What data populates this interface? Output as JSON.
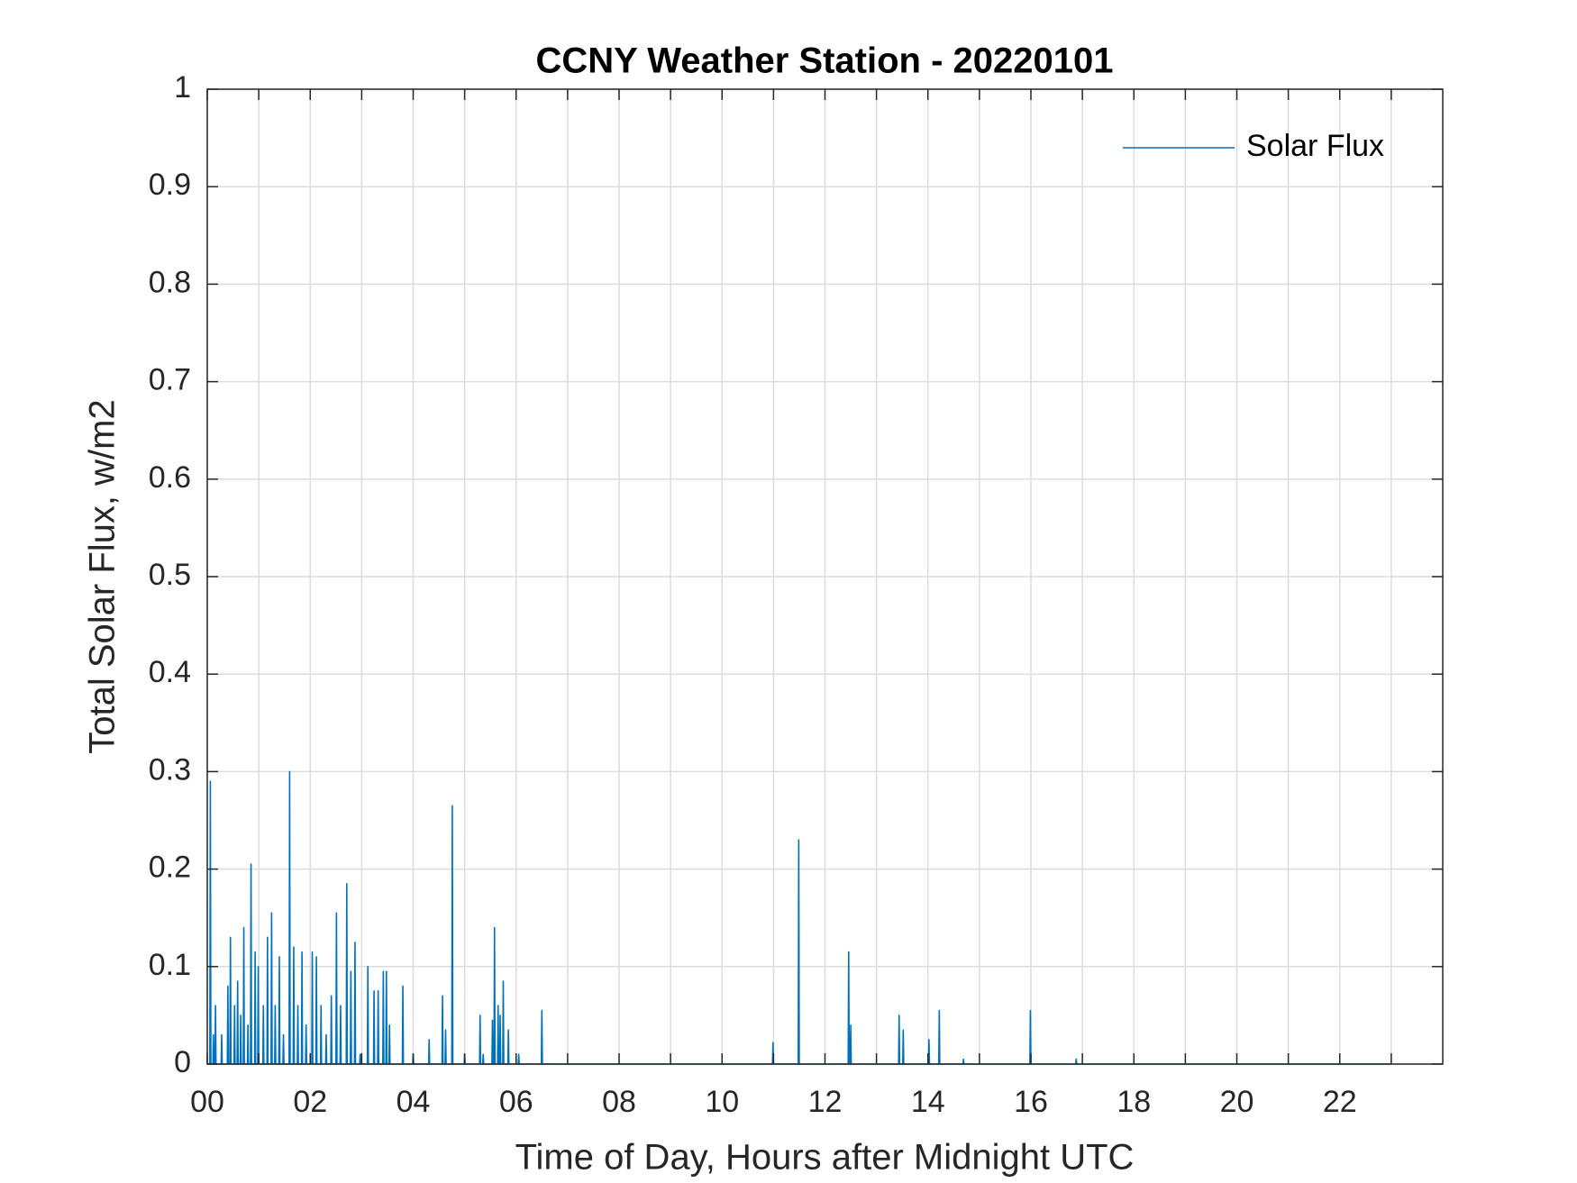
{
  "chart_data": {
    "type": "line",
    "title": "CCNY Weather Station - 20220101",
    "xlabel": "Time of Day, Hours after Midnight UTC",
    "ylabel": "Total Solar Flux, w/m2",
    "xlim": [
      0,
      24
    ],
    "ylim": [
      0,
      1
    ],
    "xticks": [
      {
        "value": 0,
        "label": "00"
      },
      {
        "value": 2,
        "label": "02"
      },
      {
        "value": 4,
        "label": "04"
      },
      {
        "value": 6,
        "label": "06"
      },
      {
        "value": 8,
        "label": "08"
      },
      {
        "value": 10,
        "label": "10"
      },
      {
        "value": 12,
        "label": "12"
      },
      {
        "value": 14,
        "label": "14"
      },
      {
        "value": 16,
        "label": "16"
      },
      {
        "value": 18,
        "label": "18"
      },
      {
        "value": 20,
        "label": "20"
      },
      {
        "value": 22,
        "label": "22"
      }
    ],
    "xminorticks": [
      1,
      3,
      5,
      7,
      9,
      11,
      13,
      15,
      17,
      19,
      21,
      23
    ],
    "yticks": [
      0,
      0.1,
      0.2,
      0.3,
      0.4,
      0.5,
      0.6,
      0.7,
      0.8,
      0.9,
      1
    ],
    "grid": true,
    "legend": "northeast",
    "x": [
      0,
      0.05,
      0.06,
      0.07,
      0.11,
      0.12,
      0.13,
      0.15,
      0.16,
      0.17,
      0.27,
      0.28,
      0.29,
      0.39,
      0.4,
      0.41,
      0.44,
      0.45,
      0.46,
      0.52,
      0.53,
      0.54,
      0.58,
      0.59,
      0.6,
      0.64,
      0.65,
      0.66,
      0.7,
      0.71,
      0.72,
      0.78,
      0.79,
      0.8,
      0.84,
      0.85,
      0.86,
      0.92,
      0.93,
      0.94,
      0.98,
      0.99,
      1.0,
      1.08,
      1.09,
      1.1,
      1.16,
      1.17,
      1.18,
      1.24,
      1.25,
      1.26,
      1.31,
      1.32,
      1.33,
      1.39,
      1.4,
      1.41,
      1.47,
      1.48,
      1.49,
      1.59,
      1.6,
      1.61,
      1.67,
      1.68,
      1.69,
      1.75,
      1.76,
      1.77,
      1.83,
      1.84,
      1.85,
      1.91,
      1.92,
      1.93,
      2.03,
      2.04,
      2.05,
      2.11,
      2.12,
      2.13,
      2.2,
      2.21,
      2.22,
      2.3,
      2.31,
      2.32,
      2.4,
      2.41,
      2.42,
      2.5,
      2.51,
      2.52,
      2.58,
      2.59,
      2.6,
      2.7,
      2.71,
      2.72,
      2.78,
      2.79,
      2.8,
      2.86,
      2.87,
      2.88,
      2.96,
      2.97,
      2.98,
      3.11,
      3.12,
      3.13,
      3.23,
      3.24,
      3.25,
      3.31,
      3.32,
      3.33,
      3.41,
      3.42,
      3.43,
      3.47,
      3.48,
      3.49,
      3.53,
      3.54,
      3.55,
      3.79,
      3.8,
      3.81,
      3.99,
      4.0,
      4.01,
      4.3,
      4.31,
      4.32,
      4.56,
      4.57,
      4.58,
      4.62,
      4.63,
      4.64,
      4.75,
      4.76,
      4.77,
      4.99,
      5.0,
      5.01,
      5.29,
      5.3,
      5.31,
      5.35,
      5.36,
      5.37,
      5.53,
      5.54,
      5.55,
      5.57,
      5.58,
      5.59,
      5.64,
      5.65,
      5.66,
      5.68,
      5.69,
      5.7,
      5.74,
      5.75,
      5.76,
      5.84,
      5.85,
      5.86,
      6.04,
      6.05,
      6.06,
      6.49,
      6.5,
      6.51,
      10.98,
      10.99,
      11.0,
      11.48,
      11.49,
      11.5,
      12.45,
      12.46,
      12.47,
      12.49,
      12.5,
      12.51,
      13.43,
      13.44,
      13.45,
      13.51,
      13.52,
      13.53,
      14.01,
      14.02,
      14.03,
      14.21,
      14.22,
      14.23,
      14.68,
      14.69,
      14.7,
      15.98,
      15.99,
      16.0,
      16.87,
      16.88,
      16.89,
      23
    ],
    "series": [
      {
        "name": "Solar Flux",
        "color": "#0072bd",
        "values": [
          0,
          0,
          0.29,
          0,
          0,
          0.03,
          0,
          0,
          0.06,
          0,
          0,
          0.03,
          0,
          0,
          0.08,
          0,
          0,
          0.13,
          0,
          0,
          0.06,
          0,
          0,
          0.085,
          0,
          0,
          0.05,
          0,
          0,
          0.14,
          0,
          0,
          0.04,
          0,
          0,
          0.205,
          0,
          0,
          0.115,
          0,
          0,
          0.1,
          0,
          0,
          0.06,
          0,
          0,
          0.13,
          0,
          0,
          0.155,
          0,
          0,
          0.06,
          0,
          0,
          0.11,
          0,
          0,
          0.03,
          0,
          0,
          0.3,
          0,
          0,
          0.12,
          0,
          0,
          0.06,
          0,
          0,
          0.115,
          0,
          0,
          0.04,
          0,
          0,
          0.115,
          0,
          0,
          0.11,
          0,
          0,
          0.06,
          0,
          0,
          0.03,
          0,
          0,
          0.07,
          0,
          0,
          0.155,
          0,
          0,
          0.06,
          0,
          0,
          0.185,
          0,
          0,
          0.095,
          0,
          0,
          0.125,
          0,
          0,
          0.01,
          0,
          0,
          0.1,
          0,
          0,
          0.075,
          0,
          0,
          0.075,
          0,
          0,
          0.095,
          0,
          0,
          0.095,
          0,
          0,
          0.04,
          0,
          0,
          0.08,
          0,
          0,
          0.01,
          0,
          0,
          0.025,
          0,
          0,
          0.07,
          0,
          0,
          0.035,
          0,
          0,
          0.265,
          0,
          0,
          0.01,
          0,
          0,
          0.05,
          0,
          0,
          0.01,
          0,
          0,
          0.045,
          0,
          0,
          0.14,
          0,
          0,
          0.06,
          0,
          0,
          0.05,
          0,
          0,
          0.085,
          0,
          0,
          0.035,
          0,
          0,
          0.01,
          0,
          0,
          0.055,
          0,
          0,
          0.022,
          0,
          0,
          0.23,
          0,
          0,
          0.115,
          0,
          0,
          0.04,
          0,
          0,
          0.05,
          0,
          0,
          0.035,
          0,
          0,
          0.025,
          0,
          0,
          0.055,
          0,
          0,
          0.005,
          0,
          0,
          0.055,
          0,
          0,
          0.005,
          0,
          0
        ]
      }
    ]
  }
}
